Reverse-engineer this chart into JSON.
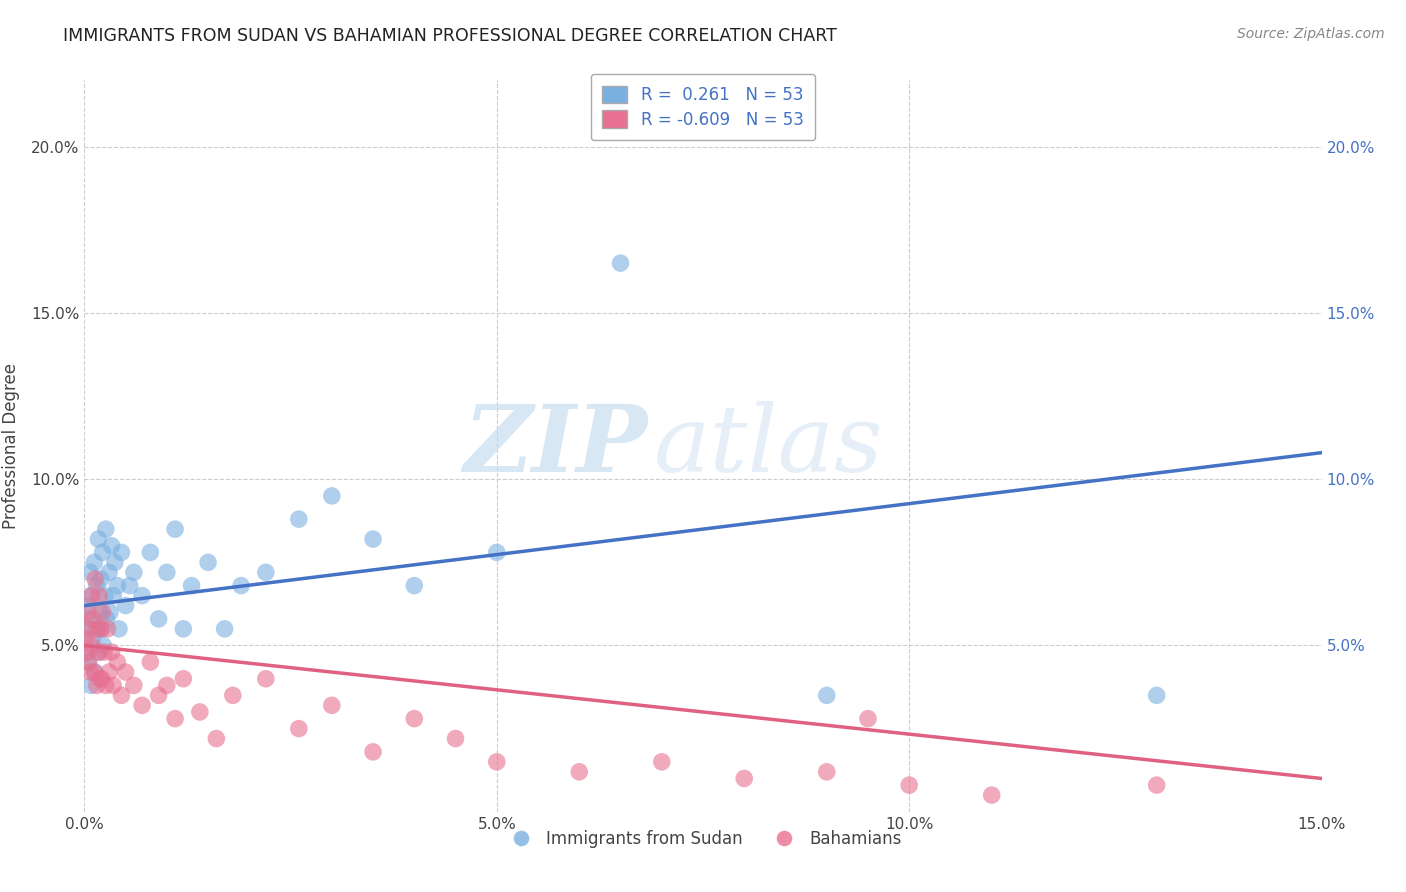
{
  "title": "IMMIGRANTS FROM SUDAN VS BAHAMIAN PROFESSIONAL DEGREE CORRELATION CHART",
  "source": "Source: ZipAtlas.com",
  "xlabel": "",
  "ylabel": "Professional Degree",
  "xlim": [
    0.0,
    0.15
  ],
  "ylim": [
    0.0,
    0.22
  ],
  "x_ticks": [
    0.0,
    0.05,
    0.1,
    0.15
  ],
  "x_tick_labels": [
    "0.0%",
    "5.0%",
    "10.0%",
    "15.0%"
  ],
  "y_ticks": [
    0.0,
    0.05,
    0.1,
    0.15,
    0.2
  ],
  "y_tick_labels": [
    "",
    "5.0%",
    "10.0%",
    "15.0%",
    "20.0%"
  ],
  "R_sudan": 0.261,
  "N_sudan": 53,
  "R_bahamian": -0.609,
  "N_bahamian": 53,
  "sudan_color": "#7ab0e0",
  "bahamian_color": "#e87090",
  "sudan_line_color": "#4472c4",
  "bahamian_line_color": "#e06080",
  "watermark_zip": "ZIP",
  "watermark_atlas": "atlas",
  "background_color": "#ffffff",
  "grid_color": "#cccccc",
  "sudan_scatter_x": [
    0.0002,
    0.0003,
    0.0004,
    0.0005,
    0.0006,
    0.0007,
    0.0008,
    0.0009,
    0.001,
    0.0012,
    0.0013,
    0.0015,
    0.0016,
    0.0017,
    0.0018,
    0.0019,
    0.002,
    0.0021,
    0.0022,
    0.0023,
    0.0025,
    0.0026,
    0.0027,
    0.003,
    0.0031,
    0.0033,
    0.0035,
    0.0037,
    0.004,
    0.0042,
    0.0045,
    0.005,
    0.0055,
    0.006,
    0.007,
    0.008,
    0.009,
    0.01,
    0.011,
    0.012,
    0.013,
    0.015,
    0.017,
    0.019,
    0.022,
    0.026,
    0.03,
    0.035,
    0.04,
    0.05,
    0.065,
    0.09,
    0.13
  ],
  "sudan_scatter_y": [
    0.055,
    0.048,
    0.062,
    0.045,
    0.058,
    0.072,
    0.038,
    0.065,
    0.052,
    0.075,
    0.042,
    0.068,
    0.055,
    0.082,
    0.048,
    0.06,
    0.07,
    0.055,
    0.078,
    0.05,
    0.065,
    0.085,
    0.058,
    0.072,
    0.06,
    0.08,
    0.065,
    0.075,
    0.068,
    0.055,
    0.078,
    0.062,
    0.068,
    0.072,
    0.065,
    0.078,
    0.058,
    0.072,
    0.085,
    0.055,
    0.068,
    0.075,
    0.055,
    0.068,
    0.072,
    0.088,
    0.095,
    0.082,
    0.068,
    0.078,
    0.165,
    0.035,
    0.035
  ],
  "bahamian_scatter_x": [
    0.0002,
    0.0003,
    0.0004,
    0.0005,
    0.0006,
    0.0007,
    0.0008,
    0.0009,
    0.001,
    0.0012,
    0.0013,
    0.0015,
    0.0016,
    0.0017,
    0.0018,
    0.0019,
    0.002,
    0.0021,
    0.0022,
    0.0024,
    0.0026,
    0.0028,
    0.003,
    0.0033,
    0.0035,
    0.004,
    0.0045,
    0.005,
    0.006,
    0.007,
    0.008,
    0.009,
    0.01,
    0.011,
    0.012,
    0.014,
    0.016,
    0.018,
    0.022,
    0.026,
    0.03,
    0.035,
    0.04,
    0.045,
    0.05,
    0.06,
    0.07,
    0.08,
    0.09,
    0.095,
    0.1,
    0.11,
    0.13
  ],
  "bahamian_scatter_y": [
    0.052,
    0.048,
    0.06,
    0.045,
    0.055,
    0.042,
    0.065,
    0.05,
    0.058,
    0.042,
    0.07,
    0.038,
    0.055,
    0.048,
    0.065,
    0.04,
    0.055,
    0.04,
    0.06,
    0.048,
    0.038,
    0.055,
    0.042,
    0.048,
    0.038,
    0.045,
    0.035,
    0.042,
    0.038,
    0.032,
    0.045,
    0.035,
    0.038,
    0.028,
    0.04,
    0.03,
    0.022,
    0.035,
    0.04,
    0.025,
    0.032,
    0.018,
    0.028,
    0.022,
    0.015,
    0.012,
    0.015,
    0.01,
    0.012,
    0.028,
    0.008,
    0.005,
    0.008
  ],
  "sudan_trend_x": [
    0.0,
    0.15
  ],
  "sudan_trend_y": [
    0.062,
    0.108
  ],
  "bahamian_trend_x": [
    0.0,
    0.15
  ],
  "bahamian_trend_y": [
    0.05,
    0.01
  ]
}
